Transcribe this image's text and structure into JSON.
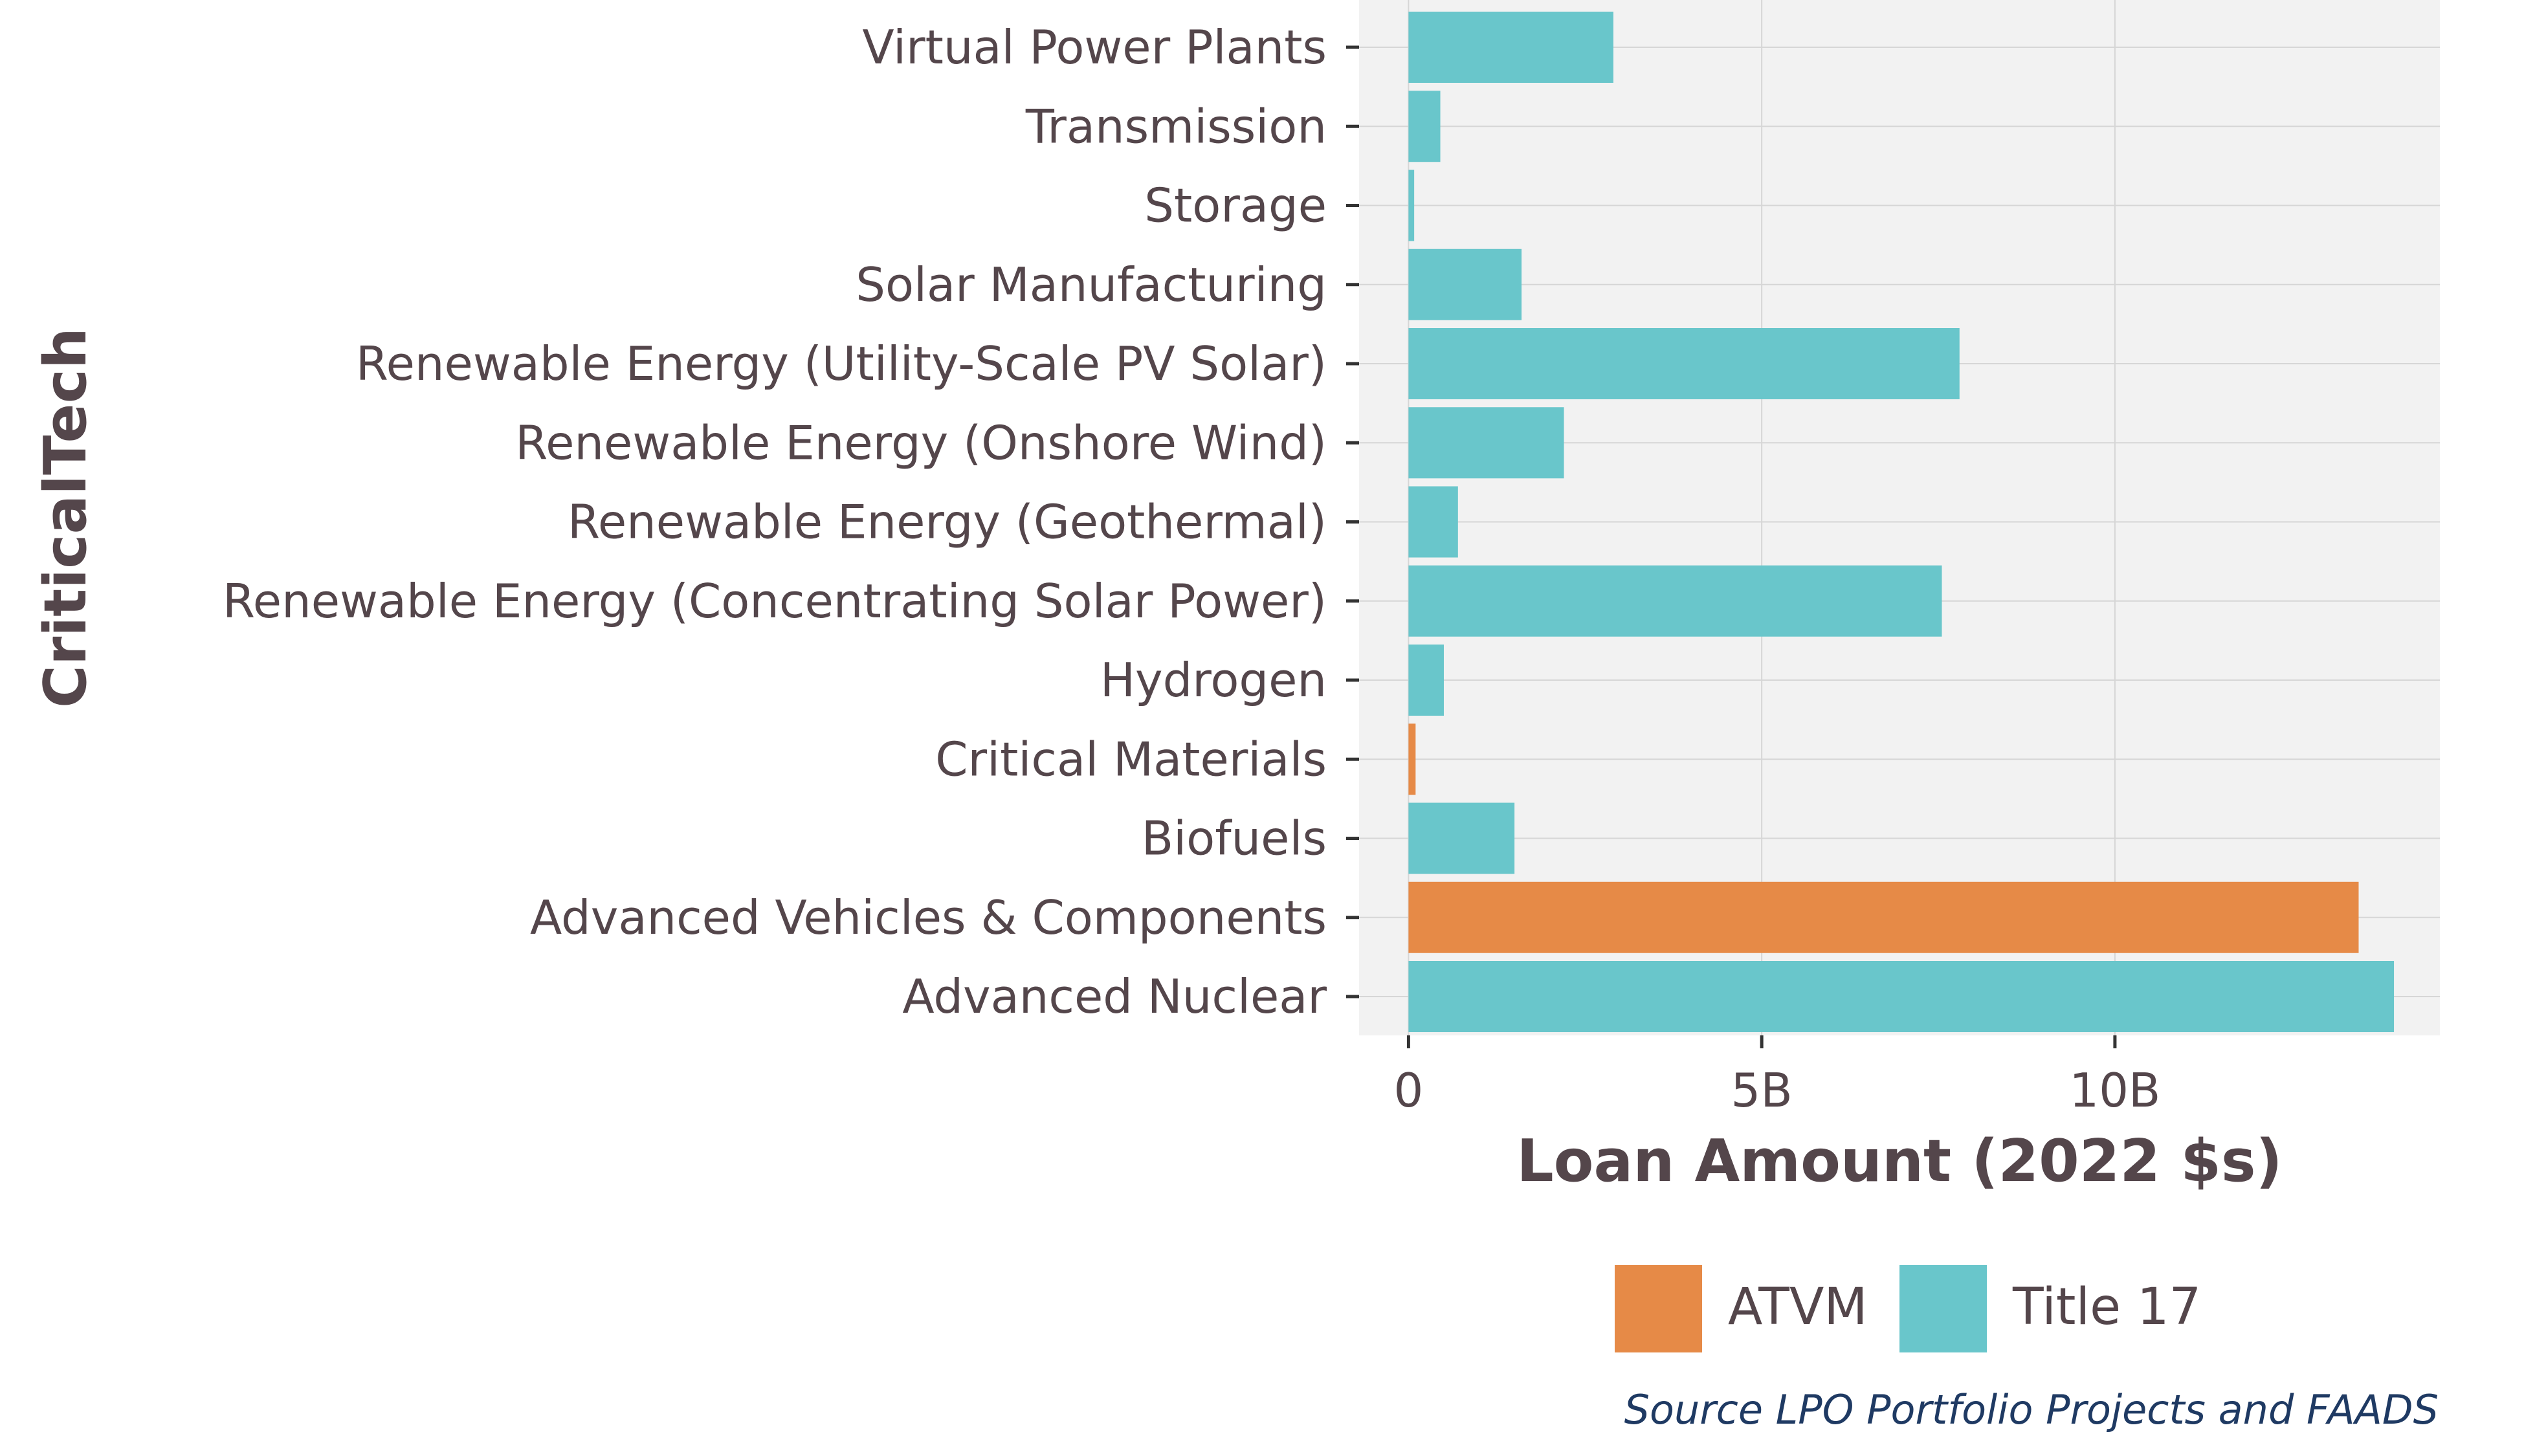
{
  "chart_data": {
    "type": "bar",
    "orientation": "horizontal",
    "categories": [
      "Virtual Power Plants",
      "Transmission",
      "Storage",
      "Solar Manufacturing",
      "Renewable Energy (Utility-Scale PV Solar)",
      "Renewable Energy (Onshore Wind)",
      "Renewable Energy (Geothermal)",
      "Renewable Energy (Concentrating Solar Power)",
      "Hydrogen",
      "Critical Materials",
      "Biofuels",
      "Advanced Vehicles & Components",
      "Advanced Nuclear"
    ],
    "values": [
      2.9,
      0.45,
      0.08,
      1.6,
      7.8,
      2.2,
      0.7,
      7.55,
      0.5,
      0.1,
      1.5,
      13.45,
      13.95
    ],
    "program": [
      "Title 17",
      "Title 17",
      "Title 17",
      "Title 17",
      "Title 17",
      "Title 17",
      "Title 17",
      "Title 17",
      "Title 17",
      "ATVM",
      "Title 17",
      "ATVM",
      "Title 17"
    ],
    "xlabel": "Loan Amount (2022 $s)",
    "ylabel": "CriticalTech",
    "xlim": [
      -0.7,
      14.6
    ],
    "x_ticks": [
      0,
      5,
      10
    ],
    "x_tick_labels": [
      "0",
      "5B",
      "10B"
    ],
    "grid": true,
    "legend": {
      "placement": "bottom",
      "entries": [
        {
          "name": "ATVM",
          "color": "#e68a47"
        },
        {
          "name": "Title 17",
          "color": "#69c6cb"
        }
      ]
    },
    "source": "Source LPO Portfolio Projects and FAADS"
  },
  "colors": {
    "panel": "#f2f2f2",
    "grid": "#d6d6d6",
    "text": "#54464b",
    "source": "#1f3a63"
  }
}
